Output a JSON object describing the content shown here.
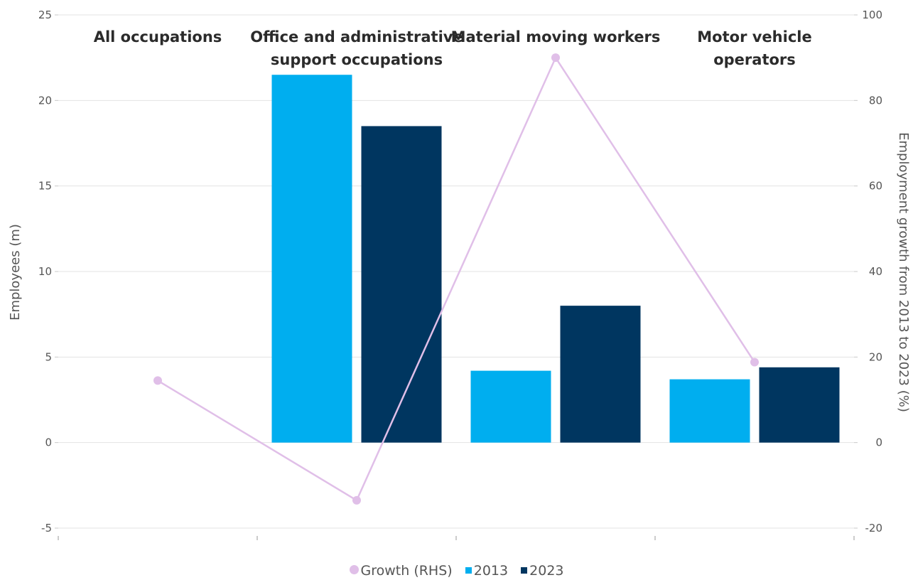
{
  "chart_data": {
    "type": "bar",
    "categories": [
      "All occupations",
      "Office and administrative support occupations",
      "Material moving workers",
      "Motor vehicle operators"
    ],
    "category_label_lines": [
      [
        "All occupations"
      ],
      [
        "Office and administrative",
        "support occupations"
      ],
      [
        "Material moving workers"
      ],
      [
        "Motor vehicle",
        "operators"
      ]
    ],
    "series": [
      {
        "name": "2013",
        "type": "bar",
        "axis": "left",
        "color": "#00aeef",
        "values": [
          null,
          21.5,
          4.2,
          3.7
        ]
      },
      {
        "name": "2023",
        "type": "bar",
        "axis": "left",
        "color": "#003660",
        "values": [
          null,
          18.5,
          8.0,
          4.4
        ]
      },
      {
        "name": "Growth (RHS)",
        "type": "line",
        "axis": "right",
        "color": "#e0bfe8",
        "values": [
          14.5,
          -13.5,
          90.0,
          18.8
        ]
      }
    ],
    "ylabel": "Employees (m)",
    "y2label": "Employment growth from 2013 to 2023 (%)",
    "ylim": [
      -5,
      25
    ],
    "y2lim": [
      -20,
      100
    ],
    "yticks": [
      "-5",
      "0",
      "5",
      "10",
      "15",
      "20",
      "25"
    ],
    "y2ticks": [
      "-20",
      "0",
      "20",
      "40",
      "60",
      "80",
      "100"
    ],
    "grid": true,
    "legend": {
      "position": "bottom-center",
      "items": [
        {
          "label": "Growth (RHS)",
          "symbol": "circle",
          "color": "#e0bfe8"
        },
        {
          "label": "2013",
          "symbol": "square",
          "color": "#00aeef"
        },
        {
          "label": "2023",
          "symbol": "square",
          "color": "#003660"
        }
      ]
    }
  }
}
